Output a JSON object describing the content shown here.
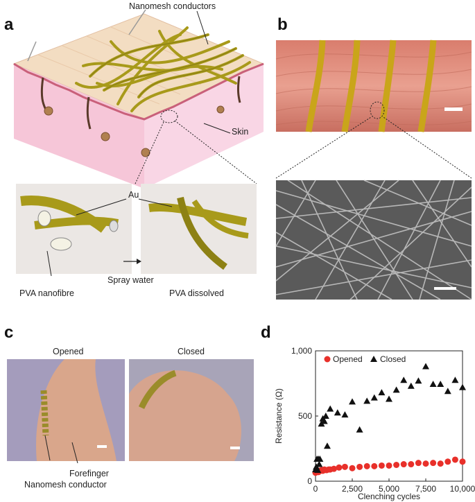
{
  "panels": {
    "a": "a",
    "b": "b",
    "c": "c",
    "d": "d"
  },
  "labels_a": {
    "nanomesh": "Nanomesh conductors",
    "skin": "Skin",
    "au": "Au",
    "pva_nanofibre": "PVA nanofibre",
    "spray_water": "Spray water",
    "pva_dissolved": "PVA dissolved"
  },
  "labels_c": {
    "opened": "Opened",
    "closed": "Closed",
    "forefinger": "Forefinger",
    "nanomesh_conductor": "Nanomesh conductor"
  },
  "colors": {
    "gold": "#a89a1a",
    "gold_dark": "#6f6510",
    "skin_top": "#f3ddc2",
    "skin_side": "#f7cfe2",
    "opened": "#e8302a",
    "closed": "#111111"
  },
  "chart_data": {
    "type": "scatter",
    "xlabel": "Clenching cycles",
    "ylabel": "Resistance (Ω)",
    "xlim": [
      0,
      10000
    ],
    "ylim": [
      0,
      1000
    ],
    "xticks": [
      "0",
      "2,500",
      "5,000",
      "7,500",
      "10,000"
    ],
    "xtick_values": [
      0,
      2500,
      5000,
      7500,
      10000
    ],
    "yticks": [
      "0",
      "500",
      "1,000"
    ],
    "ytick_values": [
      0,
      500,
      1000
    ],
    "legend_position": "top-left",
    "series": [
      {
        "name": "Opened",
        "marker": "circle",
        "color": "#e8302a",
        "x": [
          0,
          50,
          100,
          150,
          200,
          250,
          300,
          400,
          500,
          600,
          750,
          900,
          1000,
          1250,
          1600,
          2000,
          2500,
          3000,
          3500,
          4000,
          4500,
          5000,
          5500,
          6000,
          6500,
          7000,
          7500,
          8000,
          8500,
          9000,
          9500,
          10000
        ],
        "y": [
          65,
          70,
          75,
          80,
          70,
          75,
          80,
          85,
          80,
          90,
          85,
          90,
          90,
          95,
          105,
          110,
          100,
          110,
          115,
          115,
          120,
          120,
          125,
          130,
          130,
          140,
          135,
          140,
          135,
          150,
          165,
          150
        ]
      },
      {
        "name": "Closed",
        "marker": "triangle",
        "color": "#111111",
        "x": [
          0,
          50,
          100,
          150,
          200,
          250,
          300,
          400,
          500,
          600,
          700,
          800,
          1000,
          1500,
          2000,
          2500,
          3000,
          3500,
          4000,
          4500,
          5000,
          5500,
          6000,
          6500,
          7000,
          7500,
          8000,
          8500,
          9000,
          9500,
          10000
        ],
        "y": [
          90,
          110,
          170,
          85,
          170,
          130,
          170,
          440,
          480,
          460,
          500,
          270,
          555,
          525,
          510,
          610,
          395,
          615,
          640,
          680,
          630,
          700,
          775,
          730,
          770,
          880,
          745,
          745,
          690,
          775,
          720
        ]
      }
    ]
  }
}
